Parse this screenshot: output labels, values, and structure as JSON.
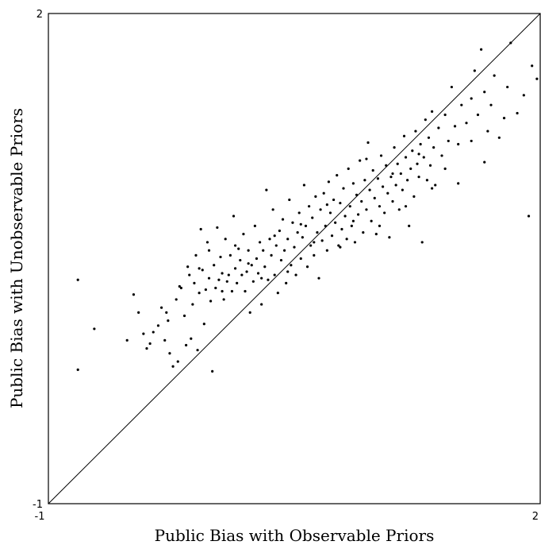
{
  "chart_data": {
    "type": "scatter",
    "title": "",
    "xlabel": "Public Bias with Observable Priors",
    "ylabel": "Public Bias with Unobservable Priors",
    "xlim": [
      -1,
      2
    ],
    "ylim": [
      -1,
      2
    ],
    "x_tick_labels": [
      "-1",
      "2"
    ],
    "y_tick_labels": [
      "-1",
      "2"
    ],
    "grid": false,
    "legend": "none",
    "reference_line": {
      "from": [
        -1,
        -1
      ],
      "to": [
        2,
        2
      ]
    },
    "colors": {
      "points": "#000000",
      "frame": "#000000",
      "line": "#000000"
    },
    "series": [
      {
        "points": [
          [
            -0.82,
            0.37
          ],
          [
            -0.72,
            0.07
          ],
          [
            -0.82,
            -0.18
          ],
          [
            -0.48,
            0.28
          ],
          [
            -0.45,
            0.17
          ],
          [
            -0.42,
            0.04
          ],
          [
            -0.4,
            -0.05
          ],
          [
            -0.36,
            0.05
          ],
          [
            -0.33,
            0.09
          ],
          [
            -0.31,
            0.2
          ],
          [
            -0.29,
            0.0
          ],
          [
            -0.28,
            0.17
          ],
          [
            -0.26,
            -0.08
          ],
          [
            -0.24,
            -0.16
          ],
          [
            -0.22,
            0.25
          ],
          [
            -0.21,
            -0.13
          ],
          [
            -0.19,
            0.32
          ],
          [
            -0.17,
            0.15
          ],
          [
            -0.16,
            -0.03
          ],
          [
            -0.15,
            0.45
          ],
          [
            -0.13,
            0.01
          ],
          [
            -0.12,
            0.22
          ],
          [
            -0.11,
            0.35
          ],
          [
            -0.1,
            0.52
          ],
          [
            -0.09,
            -0.06
          ],
          [
            -0.08,
            0.29
          ],
          [
            -0.07,
            0.68
          ],
          [
            -0.06,
            0.43
          ],
          [
            -0.05,
            0.1
          ],
          [
            -0.04,
            0.31
          ],
          [
            -0.03,
            0.6
          ],
          [
            -0.02,
            0.38
          ],
          [
            -0.01,
            0.24
          ],
          [
            0.0,
            -0.19
          ],
          [
            0.01,
            0.46
          ],
          [
            0.02,
            0.32
          ],
          [
            0.03,
            0.69
          ],
          [
            0.04,
            0.37
          ],
          [
            0.05,
            0.51
          ],
          [
            0.06,
            0.41
          ],
          [
            0.07,
            0.25
          ],
          [
            0.08,
            0.62
          ],
          [
            0.09,
            0.36
          ],
          [
            0.1,
            0.4
          ],
          [
            0.11,
            0.52
          ],
          [
            0.12,
            0.3
          ],
          [
            0.13,
            0.76
          ],
          [
            0.14,
            0.44
          ],
          [
            0.15,
            0.35
          ],
          [
            0.16,
            0.56
          ],
          [
            0.17,
            0.49
          ],
          [
            0.18,
            0.4
          ],
          [
            0.19,
            0.65
          ],
          [
            0.2,
            0.3
          ],
          [
            0.21,
            0.42
          ],
          [
            0.22,
            0.55
          ],
          [
            0.23,
            0.17
          ],
          [
            0.24,
            0.46
          ],
          [
            0.25,
            0.36
          ],
          [
            0.26,
            0.7
          ],
          [
            0.27,
            0.5
          ],
          [
            0.28,
            0.41
          ],
          [
            0.29,
            0.6
          ],
          [
            0.3,
            0.22
          ],
          [
            0.31,
            0.55
          ],
          [
            0.32,
            0.45
          ],
          [
            0.33,
            0.92
          ],
          [
            0.34,
            0.37
          ],
          [
            0.35,
            0.62
          ],
          [
            0.36,
            0.52
          ],
          [
            0.37,
            0.8
          ],
          [
            0.38,
            0.4
          ],
          [
            0.39,
            0.58
          ],
          [
            0.4,
            0.29
          ],
          [
            0.41,
            0.67
          ],
          [
            0.42,
            0.49
          ],
          [
            0.43,
            0.74
          ],
          [
            0.44,
            0.55
          ],
          [
            0.45,
            0.35
          ],
          [
            0.46,
            0.62
          ],
          [
            0.47,
            0.86
          ],
          [
            0.48,
            0.46
          ],
          [
            0.49,
            0.72
          ],
          [
            0.5,
            0.57
          ],
          [
            0.51,
            0.4
          ],
          [
            0.52,
            0.66
          ],
          [
            0.53,
            0.78
          ],
          [
            0.54,
            0.5
          ],
          [
            0.55,
            0.63
          ],
          [
            0.56,
            0.95
          ],
          [
            0.57,
            0.7
          ],
          [
            0.58,
            0.45
          ],
          [
            0.59,
            0.82
          ],
          [
            0.6,
            0.58
          ],
          [
            0.61,
            0.75
          ],
          [
            0.62,
            0.52
          ],
          [
            0.63,
            0.88
          ],
          [
            0.64,
            0.66
          ],
          [
            0.65,
            0.38
          ],
          [
            0.66,
            0.8
          ],
          [
            0.67,
            0.61
          ],
          [
            0.68,
            0.9
          ],
          [
            0.69,
            0.7
          ],
          [
            0.7,
            0.55
          ],
          [
            0.71,
            0.97
          ],
          [
            0.72,
            0.78
          ],
          [
            0.73,
            0.64
          ],
          [
            0.74,
            0.86
          ],
          [
            0.75,
            0.72
          ],
          [
            0.76,
            1.01
          ],
          [
            0.77,
            0.58
          ],
          [
            0.78,
            0.84
          ],
          [
            0.79,
            0.68
          ],
          [
            0.8,
            0.93
          ],
          [
            0.81,
            0.76
          ],
          [
            0.82,
            0.62
          ],
          [
            0.83,
            1.05
          ],
          [
            0.84,
            0.82
          ],
          [
            0.85,
            0.7
          ],
          [
            0.86,
            0.96
          ],
          [
            0.87,
            0.6
          ],
          [
            0.88,
            0.89
          ],
          [
            0.89,
            0.77
          ],
          [
            0.9,
            1.1
          ],
          [
            0.91,
            0.85
          ],
          [
            0.92,
            0.66
          ],
          [
            0.93,
            0.98
          ],
          [
            0.94,
            0.8
          ],
          [
            0.95,
            1.21
          ],
          [
            0.96,
            0.92
          ],
          [
            0.97,
            0.73
          ],
          [
            0.98,
            1.04
          ],
          [
            0.99,
            0.87
          ],
          [
            1.0,
            0.65
          ],
          [
            1.01,
            0.99
          ],
          [
            1.02,
            0.82
          ],
          [
            1.03,
            1.13
          ],
          [
            1.04,
            0.94
          ],
          [
            1.05,
            0.78
          ],
          [
            1.06,
            1.07
          ],
          [
            1.07,
            0.9
          ],
          [
            1.08,
            0.63
          ],
          [
            1.09,
            1.0
          ],
          [
            1.1,
            0.85
          ],
          [
            1.11,
            1.18
          ],
          [
            1.12,
            0.95
          ],
          [
            1.13,
            1.08
          ],
          [
            1.14,
            0.8
          ],
          [
            1.15,
            1.02
          ],
          [
            1.16,
            0.92
          ],
          [
            1.17,
            1.25
          ],
          [
            1.18,
            1.12
          ],
          [
            1.19,
            0.98
          ],
          [
            1.2,
            0.7
          ],
          [
            1.21,
            1.05
          ],
          [
            1.22,
            1.16
          ],
          [
            1.23,
            0.88
          ],
          [
            1.24,
            1.28
          ],
          [
            1.25,
            1.08
          ],
          [
            1.26,
            1.0
          ],
          [
            1.27,
            1.2
          ],
          [
            1.28,
            0.6
          ],
          [
            1.29,
            1.12
          ],
          [
            1.3,
            1.35
          ],
          [
            1.31,
            0.98
          ],
          [
            1.32,
            1.24
          ],
          [
            1.33,
            1.07
          ],
          [
            1.34,
            1.4
          ],
          [
            1.35,
            1.18
          ],
          [
            1.36,
            0.95
          ],
          [
            1.38,
            1.3
          ],
          [
            1.4,
            1.13
          ],
          [
            1.42,
            1.38
          ],
          [
            1.44,
            1.22
          ],
          [
            1.46,
            1.55
          ],
          [
            1.48,
            1.31
          ],
          [
            1.5,
            1.2
          ],
          [
            1.52,
            1.44
          ],
          [
            1.55,
            1.33
          ],
          [
            1.58,
            1.48
          ],
          [
            1.6,
            1.65
          ],
          [
            1.62,
            1.38
          ],
          [
            1.64,
            1.78
          ],
          [
            1.66,
            1.52
          ],
          [
            1.68,
            1.28
          ],
          [
            1.7,
            1.44
          ],
          [
            1.72,
            1.62
          ],
          [
            1.75,
            1.24
          ],
          [
            1.78,
            1.36
          ],
          [
            1.8,
            1.55
          ],
          [
            1.82,
            1.82
          ],
          [
            1.86,
            1.39
          ],
          [
            1.9,
            1.5
          ],
          [
            1.93,
            0.76
          ],
          [
            1.95,
            1.68
          ],
          [
            1.98,
            1.6
          ],
          [
            -0.52,
            0.0
          ],
          [
            -0.38,
            -0.02
          ],
          [
            -0.27,
            0.12
          ],
          [
            -0.2,
            0.33
          ],
          [
            -0.14,
            0.4
          ],
          [
            -0.08,
            0.44
          ],
          [
            -0.02,
            0.55
          ],
          [
            0.06,
            0.3
          ],
          [
            0.14,
            0.58
          ],
          [
            0.22,
            0.47
          ],
          [
            0.3,
            0.38
          ],
          [
            0.38,
            0.64
          ],
          [
            0.46,
            0.42
          ],
          [
            0.54,
            0.71
          ],
          [
            0.62,
            0.6
          ],
          [
            0.7,
            0.83
          ],
          [
            0.78,
            0.57
          ],
          [
            0.86,
            0.73
          ],
          [
            0.94,
            1.11
          ],
          [
            1.02,
            0.7
          ],
          [
            1.1,
            1.02
          ],
          [
            1.18,
            0.82
          ],
          [
            1.26,
            1.14
          ],
          [
            1.34,
            0.93
          ],
          [
            1.42,
            1.05
          ],
          [
            1.5,
            0.96
          ],
          [
            1.58,
            1.22
          ],
          [
            1.66,
            1.09
          ]
        ]
      }
    ]
  }
}
